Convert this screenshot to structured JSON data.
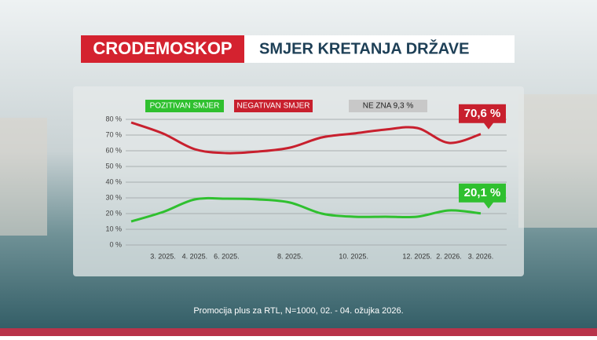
{
  "chart_data": {
    "type": "line",
    "title": "CRODEMOSKOP",
    "subtitle": "SMJER KRETANJA DRŽAVE",
    "annotation": "NE ZNA 9,3 %",
    "footer": "Promocija plus za RTL, N=1000, 02. - 04. ožujka 2026.",
    "categories": [
      null,
      "3. 2025.",
      "4. 2025.",
      "6. 2025.",
      null,
      "8. 2025.",
      null,
      "10. 2025.",
      null,
      "12. 2025.",
      "2. 2026.",
      "3. 2026."
    ],
    "series": [
      {
        "name": "POZITIVAN SMJER",
        "color": "#2fc02f",
        "values": [
          15,
          21,
          29,
          29.5,
          29,
          27,
          20,
          18,
          18,
          18,
          22,
          20.1
        ],
        "end_label": "20,1 %"
      },
      {
        "name": "NEGATIVAN SMJER",
        "color": "#c8202e",
        "values": [
          78,
          71,
          61,
          58.5,
          59.5,
          62,
          68.5,
          71,
          73.5,
          74.5,
          65,
          70.6
        ],
        "end_label": "70,6 %"
      }
    ],
    "ylim": [
      0,
      80
    ],
    "yticks": [
      {
        "value": 0,
        "label": "0 %"
      },
      {
        "value": 10,
        "label": "10 %"
      },
      {
        "value": 20,
        "label": "20 %"
      },
      {
        "value": 30,
        "label": "30 %"
      },
      {
        "value": 40,
        "label": "40 %"
      },
      {
        "value": 50,
        "label": "50 %"
      },
      {
        "value": 60,
        "label": "60 %"
      },
      {
        "value": 70,
        "label": "70 %"
      },
      {
        "value": 80,
        "label": "80 %"
      }
    ],
    "grid": true
  }
}
